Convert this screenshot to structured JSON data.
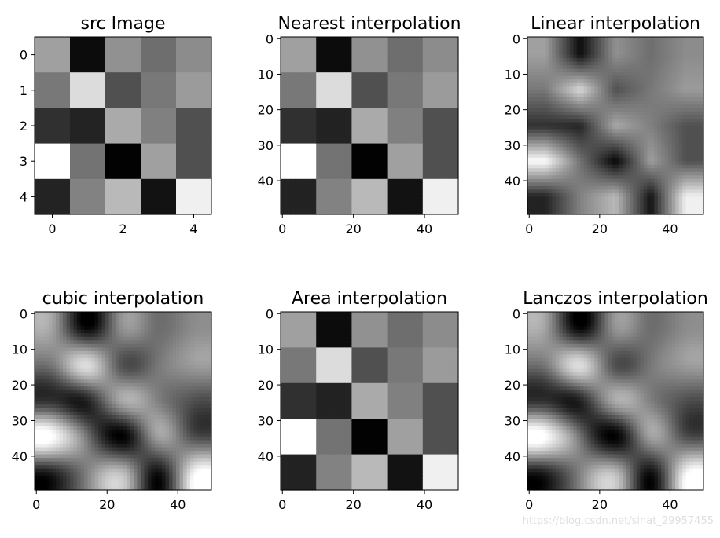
{
  "chart_data": [
    {
      "type": "heatmap",
      "title": "src Image",
      "size": 5,
      "xticks": [
        0,
        2,
        4
      ],
      "yticks": [
        0,
        1,
        2,
        3,
        4
      ],
      "method": "nearest",
      "matrix": [
        [
          160,
          12,
          145,
          110,
          140
        ],
        [
          120,
          220,
          80,
          120,
          155
        ],
        [
          48,
          35,
          170,
          128,
          80
        ],
        [
          255,
          115,
          2,
          160,
          80
        ],
        [
          35,
          130,
          185,
          18,
          240
        ]
      ]
    },
    {
      "type": "heatmap",
      "title": "Nearest interpolation",
      "size": 50,
      "xticks": [
        0,
        20,
        40
      ],
      "yticks": [
        0,
        10,
        20,
        30,
        40
      ],
      "method": "nearest",
      "matrix": [
        [
          160,
          12,
          145,
          110,
          140
        ],
        [
          120,
          220,
          80,
          120,
          155
        ],
        [
          48,
          35,
          170,
          128,
          80
        ],
        [
          255,
          115,
          2,
          160,
          80
        ],
        [
          35,
          130,
          185,
          18,
          240
        ]
      ]
    },
    {
      "type": "heatmap",
      "title": "Linear interpolation",
      "size": 50,
      "xticks": [
        0,
        20,
        40
      ],
      "yticks": [
        0,
        10,
        20,
        30,
        40
      ],
      "method": "linear",
      "matrix": [
        [
          160,
          12,
          145,
          110,
          140
        ],
        [
          120,
          220,
          80,
          120,
          155
        ],
        [
          48,
          35,
          170,
          128,
          80
        ],
        [
          255,
          115,
          2,
          160,
          80
        ],
        [
          35,
          130,
          185,
          18,
          240
        ]
      ]
    },
    {
      "type": "heatmap",
      "title": "cubic interpolation",
      "size": 50,
      "xticks": [
        0,
        20,
        40
      ],
      "yticks": [
        0,
        10,
        20,
        30,
        40
      ],
      "method": "cubic",
      "matrix": [
        [
          160,
          12,
          145,
          110,
          140
        ],
        [
          120,
          220,
          80,
          120,
          155
        ],
        [
          48,
          35,
          170,
          128,
          80
        ],
        [
          255,
          115,
          2,
          160,
          80
        ],
        [
          35,
          130,
          185,
          18,
          240
        ]
      ]
    },
    {
      "type": "heatmap",
      "title": "Area interpolation",
      "size": 50,
      "xticks": [
        0,
        20,
        40
      ],
      "yticks": [
        0,
        10,
        20,
        30,
        40
      ],
      "method": "nearest",
      "matrix": [
        [
          160,
          12,
          145,
          110,
          140
        ],
        [
          120,
          220,
          80,
          120,
          155
        ],
        [
          48,
          35,
          170,
          128,
          80
        ],
        [
          255,
          115,
          2,
          160,
          80
        ],
        [
          35,
          130,
          185,
          18,
          240
        ]
      ]
    },
    {
      "type": "heatmap",
      "title": "Lanczos interpolation",
      "size": 50,
      "xticks": [
        0,
        20,
        40
      ],
      "yticks": [
        0,
        10,
        20,
        30,
        40
      ],
      "method": "cubic",
      "matrix": [
        [
          160,
          12,
          145,
          110,
          140
        ],
        [
          120,
          220,
          80,
          120,
          155
        ],
        [
          48,
          35,
          170,
          128,
          80
        ],
        [
          255,
          115,
          2,
          160,
          80
        ],
        [
          35,
          130,
          185,
          18,
          240
        ]
      ]
    }
  ],
  "watermark": "https://blog.csdn.net/sinat_29957455"
}
